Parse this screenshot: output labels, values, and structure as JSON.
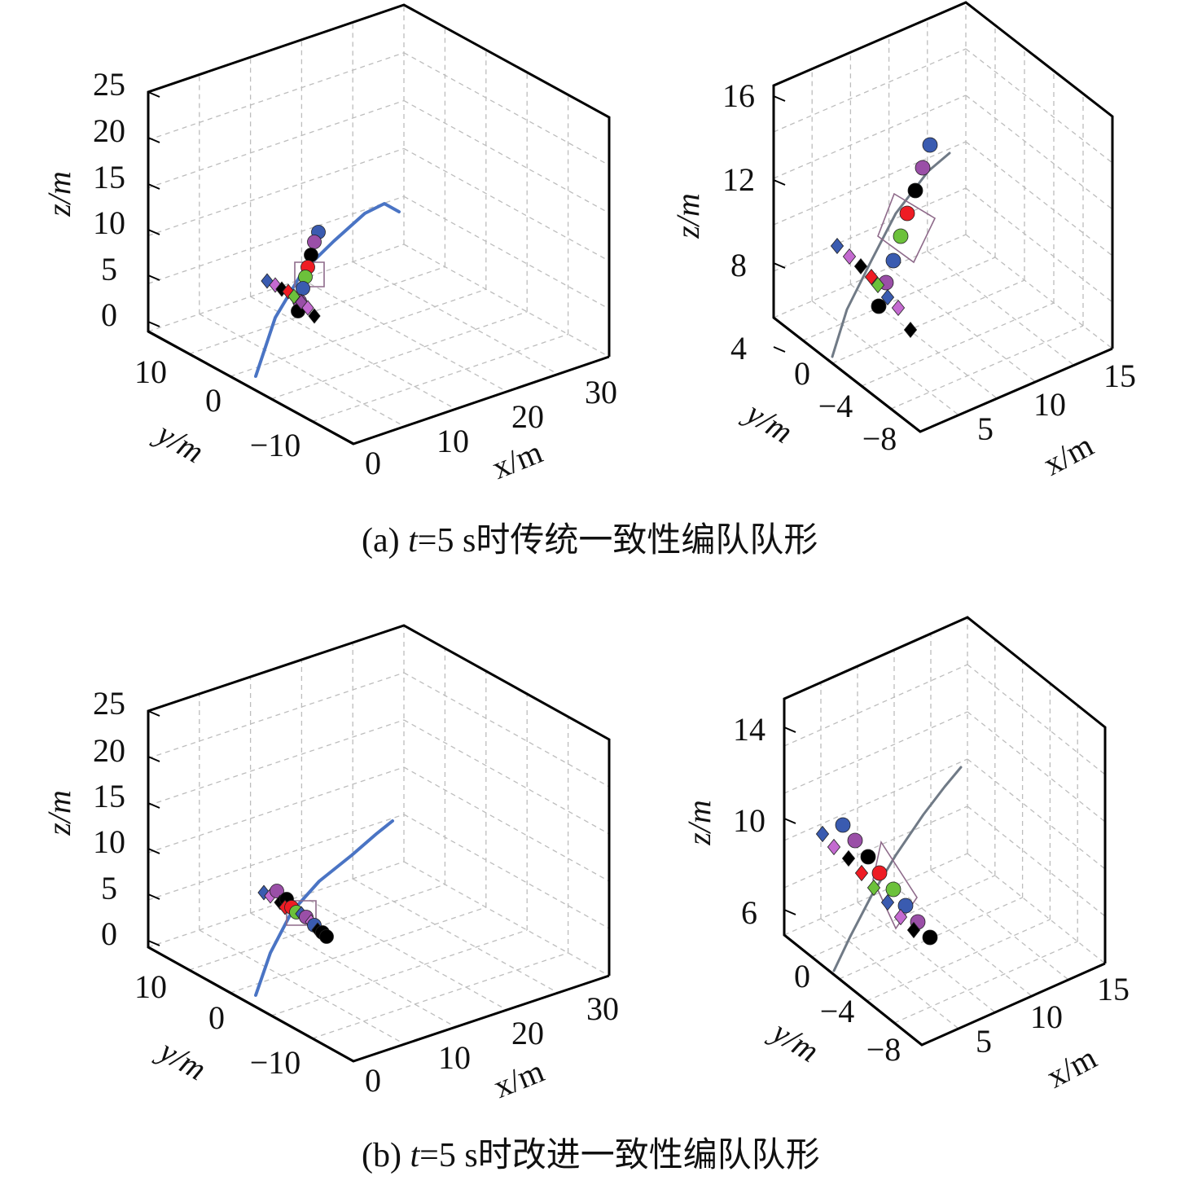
{
  "colors": {
    "blue": "#3a5bb0",
    "purple": "#9a4fa7",
    "magenta": "#c46ad0",
    "black": "#000000",
    "red": "#ee1c24",
    "green": "#6cc13b",
    "traj_wide": "#4a74c4",
    "traj_zoom": "#707a86",
    "box": "#8e6a8a"
  },
  "captions": {
    "a": {
      "prefix": "(a) ",
      "tvar": "t",
      "rest": "=5 s时传统一致性编队队形"
    },
    "b": {
      "prefix": "(b) ",
      "tvar": "t",
      "rest": "=5 s时改进一致性编队队形"
    }
  },
  "chart_data": [
    {
      "id": "a-wide",
      "type": "scatter",
      "view": "3d",
      "xlabel": "x/m",
      "ylabel": "y/m",
      "zlabel": "z/m",
      "xticks": [
        "0",
        "10",
        "20",
        "30"
      ],
      "yticks": [
        "10",
        "0",
        "−10"
      ],
      "zticks": [
        "25",
        "20",
        "15",
        "10",
        "5",
        "0"
      ],
      "xlim": [
        0,
        30
      ],
      "ylim": [
        -15,
        15
      ],
      "zlim": [
        -2,
        25
      ]
    },
    {
      "id": "a-zoom",
      "type": "scatter",
      "view": "3d",
      "xlabel": "x/m",
      "ylabel": "y/m",
      "zlabel": "z/m",
      "xticks": [
        "5",
        "10",
        "15"
      ],
      "yticks": [
        "0",
        "−4",
        "−8"
      ],
      "zticks": [
        "16",
        "12",
        "8",
        "4"
      ],
      "xlim": [
        0,
        17
      ],
      "ylim": [
        -10,
        2
      ],
      "zlim": [
        4,
        16
      ]
    },
    {
      "id": "b-wide",
      "type": "scatter",
      "view": "3d",
      "xlabel": "x/m",
      "ylabel": "y/m",
      "zlabel": "z/m",
      "xticks": [
        "0",
        "10",
        "20",
        "30"
      ],
      "yticks": [
        "10",
        "0",
        "−10"
      ],
      "zticks": [
        "25",
        "20",
        "15",
        "10",
        "5",
        "0"
      ],
      "xlim": [
        0,
        30
      ],
      "ylim": [
        -15,
        15
      ],
      "zlim": [
        -2,
        25
      ]
    },
    {
      "id": "b-zoom",
      "type": "scatter",
      "view": "3d",
      "xlabel": "x/m",
      "ylabel": "y/m",
      "zlabel": "z/m",
      "xticks": [
        "5",
        "10",
        "15"
      ],
      "yticks": [
        "0",
        "−4",
        "−8"
      ],
      "zticks": [
        "14",
        "10",
        "6"
      ],
      "xlim": [
        0,
        17
      ],
      "ylim": [
        -10,
        2
      ],
      "zlim": [
        4,
        15
      ]
    }
  ]
}
